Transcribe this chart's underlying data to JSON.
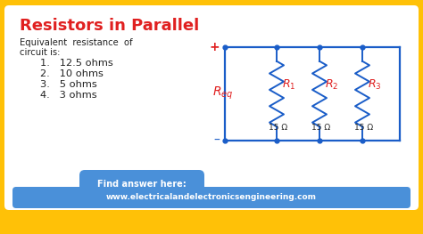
{
  "bg_outer": "#FFC107",
  "bg_inner": "#FFFFFF",
  "title": "Resistors in Parallel",
  "title_color": "#E02020",
  "title_fontsize": 13,
  "text_color": "#222222",
  "eq_line1": "Equivalent  resistance  of",
  "eq_line2": "circuit is:",
  "list_items": [
    "1.   12.5 ohms",
    "2.   10 ohms",
    "3.   5 ohms",
    "4.   3 ohms"
  ],
  "button_color": "#4A90D9",
  "button_text": "Find answer here:",
  "footer_color": "#4A90D9",
  "footer_text": "www.electricalandelectronicsengineering.com",
  "circuit_color": "#1A5DC8",
  "resistor_label_color": "#E02020",
  "resistor_values": [
    "15 Ω",
    "15 Ω",
    "15 Ω"
  ],
  "plus_color": "#E02020",
  "minus_color": "#1A5DC8",
  "dot_color": "#1A5DC8"
}
